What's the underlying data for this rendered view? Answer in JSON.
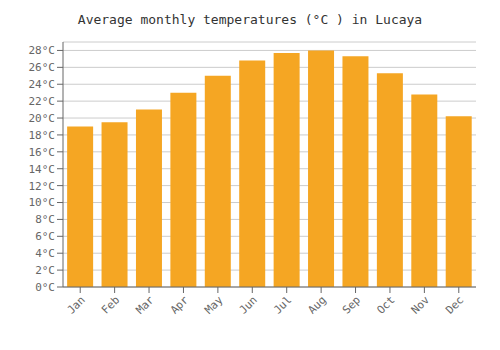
{
  "chart_data": {
    "type": "bar",
    "title": "Average monthly temperatures (°C ) in Lucaya",
    "categories": [
      "Jan",
      "Feb",
      "Mar",
      "Apr",
      "May",
      "Jun",
      "Jul",
      "Aug",
      "Sep",
      "Oct",
      "Nov",
      "Dec"
    ],
    "values": [
      19.0,
      19.5,
      21.0,
      23.0,
      25.0,
      26.8,
      27.7,
      28.0,
      27.3,
      25.3,
      22.8,
      20.2
    ],
    "color": "#F5A623",
    "ylim": [
      0,
      29
    ],
    "yticks": [
      {
        "value": 0,
        "label": "0°C"
      },
      {
        "value": 2,
        "label": "2°C"
      },
      {
        "value": 4,
        "label": "4°C"
      },
      {
        "value": 6,
        "label": "6°C"
      },
      {
        "value": 8,
        "label": "8°C"
      },
      {
        "value": 10,
        "label": "10°C"
      },
      {
        "value": 12,
        "label": "12°C"
      },
      {
        "value": 14,
        "label": "14°C"
      },
      {
        "value": 16,
        "label": "16°C"
      },
      {
        "value": 18,
        "label": "18°C"
      },
      {
        "value": 20,
        "label": "20°C"
      },
      {
        "value": 22,
        "label": "22°C"
      },
      {
        "value": 24,
        "label": "24°C"
      },
      {
        "value": 26,
        "label": "26°C"
      },
      {
        "value": 28,
        "label": "28°C"
      }
    ],
    "grid": true
  }
}
